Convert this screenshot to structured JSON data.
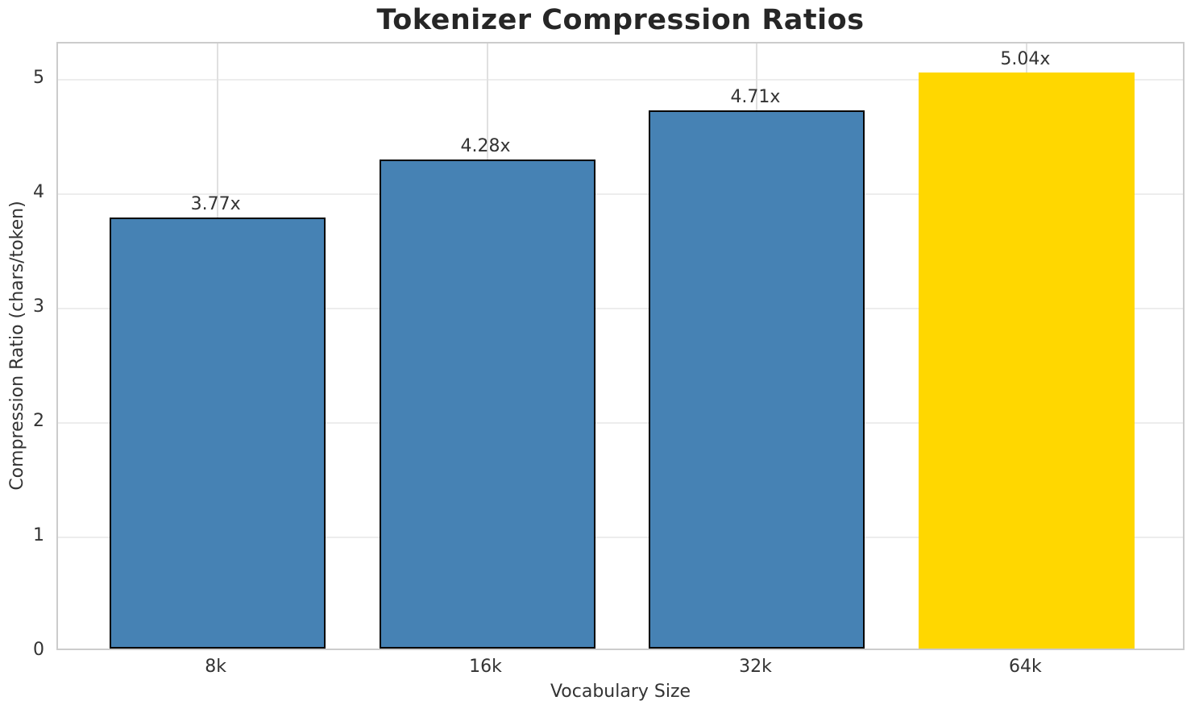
{
  "chart_data": {
    "type": "bar",
    "title": "Tokenizer Compression Ratios",
    "xlabel": "Vocabulary Size",
    "ylabel": "Compression Ratio (chars/token)",
    "categories": [
      "8k",
      "16k",
      "32k",
      "64k"
    ],
    "values": [
      3.77,
      4.28,
      4.71,
      5.04
    ],
    "bar_labels": [
      "3.77x",
      "4.28x",
      "4.71x",
      "5.04x"
    ],
    "yticks": [
      "0",
      "1",
      "2",
      "3",
      "4",
      "5"
    ],
    "ytick_values": [
      0,
      1,
      2,
      3,
      4,
      5
    ],
    "ylim": [
      0,
      5.32
    ],
    "xlim": [
      -0.59,
      3.59
    ],
    "bar_width_units": 0.8,
    "grid": "on",
    "legend": "none",
    "highlight_index": 3,
    "colors": {
      "bar_default": "#4682B4",
      "bar_highlight": "#FFD700",
      "bar_edge": "#000000",
      "title_text": "#262626",
      "tick_text": "#333333",
      "axis_label_text": "#333333",
      "bar_label_text": "#333333",
      "spine": "#cccccc",
      "hgrid": "#ededed",
      "vgrid": "#e0e0e0",
      "background": "#ffffff"
    }
  }
}
